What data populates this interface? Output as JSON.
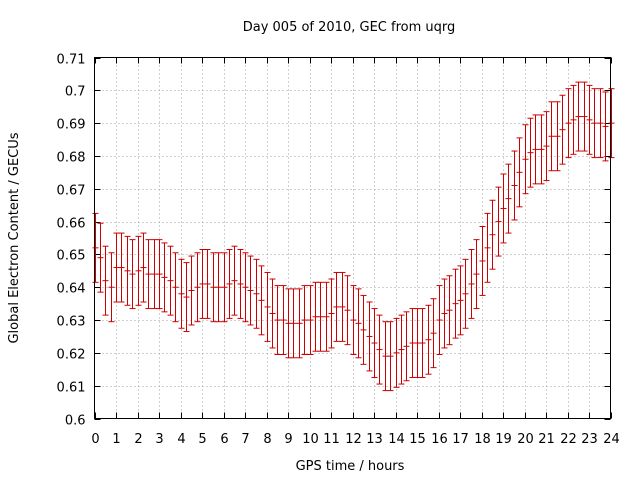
{
  "chart_data": {
    "type": "errorbar",
    "title": "Day 005 of 2010, GEC from uqrg",
    "xlabel": "GPS time / hours",
    "ylabel": "Global Electron Content / GECUs",
    "xlim": [
      0,
      24
    ],
    "ylim": [
      0.6,
      0.71
    ],
    "xticks": [
      0,
      1,
      2,
      3,
      4,
      5,
      6,
      7,
      8,
      9,
      10,
      11,
      12,
      13,
      14,
      15,
      16,
      17,
      18,
      19,
      20,
      21,
      22,
      23,
      24
    ],
    "yticks": [
      "0.6",
      "0.61",
      "0.62",
      "0.63",
      "0.64",
      "0.65",
      "0.66",
      "0.67",
      "0.68",
      "0.69",
      "0.7",
      "0.71"
    ],
    "grid": true,
    "color": "#cc0000",
    "x": [
      0,
      0.25,
      0.5,
      0.75,
      1,
      1.25,
      1.5,
      1.75,
      2,
      2.25,
      2.5,
      2.75,
      3,
      3.25,
      3.5,
      3.75,
      4,
      4.25,
      4.5,
      4.75,
      5,
      5.25,
      5.5,
      5.75,
      6,
      6.25,
      6.5,
      6.75,
      7,
      7.25,
      7.5,
      7.75,
      8,
      8.25,
      8.5,
      8.75,
      9,
      9.25,
      9.5,
      9.75,
      10,
      10.25,
      10.5,
      10.75,
      11,
      11.25,
      11.5,
      11.75,
      12,
      12.25,
      12.5,
      12.75,
      13,
      13.25,
      13.5,
      13.75,
      14,
      14.25,
      14.5,
      14.75,
      15,
      15.25,
      15.5,
      15.75,
      16,
      16.25,
      16.5,
      16.75,
      17,
      17.25,
      17.5,
      17.75,
      18,
      18.25,
      18.5,
      18.75,
      19,
      19.25,
      19.5,
      19.75,
      20,
      20.25,
      20.5,
      20.75,
      21,
      21.25,
      21.5,
      21.75,
      22,
      22.25,
      22.5,
      22.75,
      23,
      23.25,
      23.5,
      23.75,
      24
    ],
    "y": [
      0.652,
      0.649,
      0.642,
      0.64,
      0.646,
      0.646,
      0.645,
      0.644,
      0.645,
      0.646,
      0.644,
      0.644,
      0.644,
      0.643,
      0.642,
      0.64,
      0.638,
      0.637,
      0.639,
      0.64,
      0.641,
      0.641,
      0.64,
      0.64,
      0.64,
      0.641,
      0.642,
      0.641,
      0.64,
      0.639,
      0.638,
      0.636,
      0.634,
      0.632,
      0.63,
      0.63,
      0.629,
      0.629,
      0.629,
      0.63,
      0.63,
      0.631,
      0.631,
      0.631,
      0.632,
      0.634,
      0.634,
      0.633,
      0.63,
      0.629,
      0.627,
      0.625,
      0.623,
      0.621,
      0.619,
      0.619,
      0.62,
      0.621,
      0.622,
      0.623,
      0.623,
      0.623,
      0.624,
      0.626,
      0.63,
      0.632,
      0.633,
      0.635,
      0.636,
      0.638,
      0.641,
      0.644,
      0.648,
      0.652,
      0.656,
      0.66,
      0.664,
      0.667,
      0.671,
      0.675,
      0.679,
      0.681,
      0.682,
      0.682,
      0.683,
      0.686,
      0.686,
      0.688,
      0.69,
      0.691,
      0.692,
      0.692,
      0.691,
      0.69,
      0.69,
      0.689,
      0.69
    ],
    "err": 0.0105
  }
}
